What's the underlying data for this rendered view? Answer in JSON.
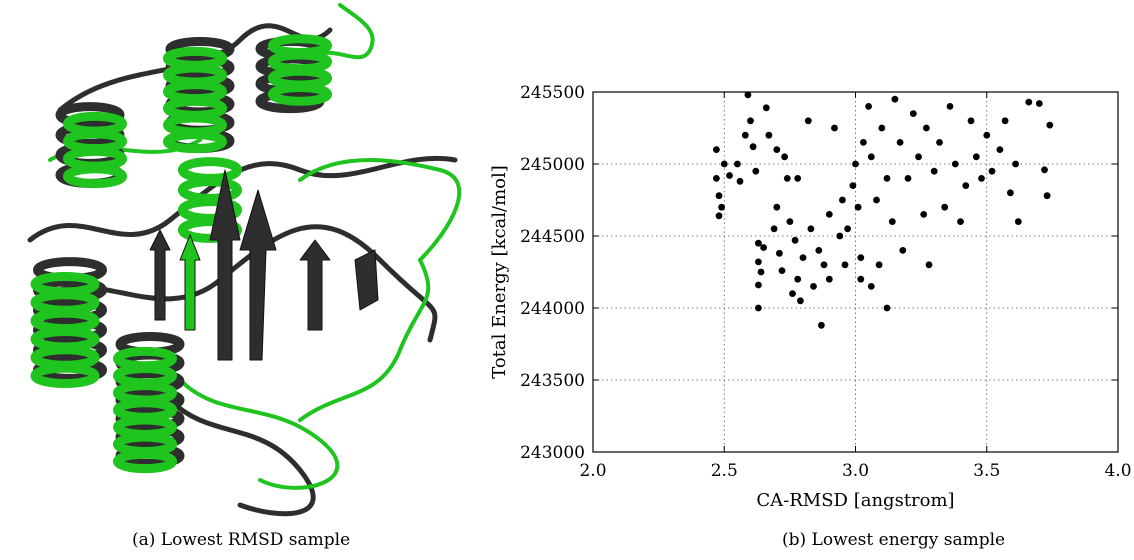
{
  "figure_a": {
    "caption": "(a) Lowest RMSD sample",
    "colors": {
      "reference": "#2e2e2e",
      "sample": "#1fc41f"
    }
  },
  "figure_b": {
    "caption": "(b) Lowest energy sample"
  },
  "chart_data": {
    "type": "scatter",
    "xlabel": "CA-RMSD [angstrom]",
    "ylabel": "Total Energy [kcal/mol]",
    "xlim": [
      2.0,
      4.0
    ],
    "ylim": [
      243000,
      245500
    ],
    "xticks": [
      "2.0",
      "2.5",
      "3.0",
      "3.5",
      "4.0"
    ],
    "yticks": [
      "243000",
      "243500",
      "244000",
      "244500",
      "245000",
      "245500"
    ],
    "grid": true,
    "marker_color": "#000000",
    "series": [
      {
        "points": [
          [
            2.47,
            245100
          ],
          [
            2.47,
            244900
          ],
          [
            2.48,
            244780
          ],
          [
            2.48,
            244640
          ],
          [
            2.49,
            244700
          ],
          [
            2.5,
            245000
          ],
          [
            2.52,
            244920
          ],
          [
            2.55,
            245000
          ],
          [
            2.56,
            244880
          ],
          [
            2.58,
            245200
          ],
          [
            2.59,
            245480
          ],
          [
            2.6,
            245300
          ],
          [
            2.61,
            245120
          ],
          [
            2.62,
            244950
          ],
          [
            2.63,
            244450
          ],
          [
            2.63,
            244320
          ],
          [
            2.63,
            244160
          ],
          [
            2.63,
            244000
          ],
          [
            2.64,
            244250
          ],
          [
            2.65,
            244420
          ],
          [
            2.66,
            245390
          ],
          [
            2.67,
            245200
          ],
          [
            2.69,
            244550
          ],
          [
            2.7,
            244700
          ],
          [
            2.71,
            244380
          ],
          [
            2.72,
            244260
          ],
          [
            2.73,
            245050
          ],
          [
            2.74,
            244900
          ],
          [
            2.75,
            244600
          ],
          [
            2.76,
            244100
          ],
          [
            2.77,
            244470
          ],
          [
            2.78,
            244200
          ],
          [
            2.79,
            244050
          ],
          [
            2.8,
            244350
          ],
          [
            2.82,
            245300
          ],
          [
            2.83,
            244550
          ],
          [
            2.84,
            244150
          ],
          [
            2.86,
            244400
          ],
          [
            2.87,
            243880
          ],
          [
            2.88,
            244300
          ],
          [
            2.9,
            244650
          ],
          [
            2.92,
            245250
          ],
          [
            2.94,
            244500
          ],
          [
            2.95,
            244750
          ],
          [
            2.97,
            244550
          ],
          [
            2.99,
            244850
          ],
          [
            3.0,
            245000
          ],
          [
            3.01,
            244700
          ],
          [
            3.02,
            244350
          ],
          [
            3.03,
            245150
          ],
          [
            3.05,
            245400
          ],
          [
            3.06,
            245050
          ],
          [
            3.08,
            244750
          ],
          [
            3.09,
            244300
          ],
          [
            3.1,
            245250
          ],
          [
            3.12,
            244900
          ],
          [
            3.14,
            244600
          ],
          [
            3.15,
            245450
          ],
          [
            3.17,
            245150
          ],
          [
            3.18,
            244400
          ],
          [
            3.2,
            244900
          ],
          [
            3.22,
            245350
          ],
          [
            3.24,
            245050
          ],
          [
            3.26,
            244650
          ],
          [
            3.27,
            245250
          ],
          [
            3.28,
            244300
          ],
          [
            3.3,
            244950
          ],
          [
            3.32,
            245150
          ],
          [
            3.34,
            244700
          ],
          [
            3.36,
            245400
          ],
          [
            3.38,
            245000
          ],
          [
            3.4,
            244600
          ],
          [
            3.42,
            244850
          ],
          [
            3.44,
            245300
          ],
          [
            3.46,
            245050
          ],
          [
            3.48,
            244900
          ],
          [
            3.5,
            245200
          ],
          [
            3.52,
            244950
          ],
          [
            3.55,
            245100
          ],
          [
            3.57,
            245300
          ],
          [
            3.59,
            244800
          ],
          [
            3.61,
            245000
          ],
          [
            3.62,
            244600
          ],
          [
            3.66,
            245430
          ],
          [
            3.7,
            245420
          ],
          [
            3.72,
            244960
          ],
          [
            3.73,
            244780
          ],
          [
            3.74,
            245270
          ],
          [
            3.02,
            244200
          ],
          [
            3.06,
            244150
          ],
          [
            3.12,
            244000
          ],
          [
            2.96,
            244300
          ],
          [
            2.9,
            244200
          ],
          [
            2.78,
            244900
          ],
          [
            2.7,
            245100
          ]
        ]
      }
    ]
  }
}
